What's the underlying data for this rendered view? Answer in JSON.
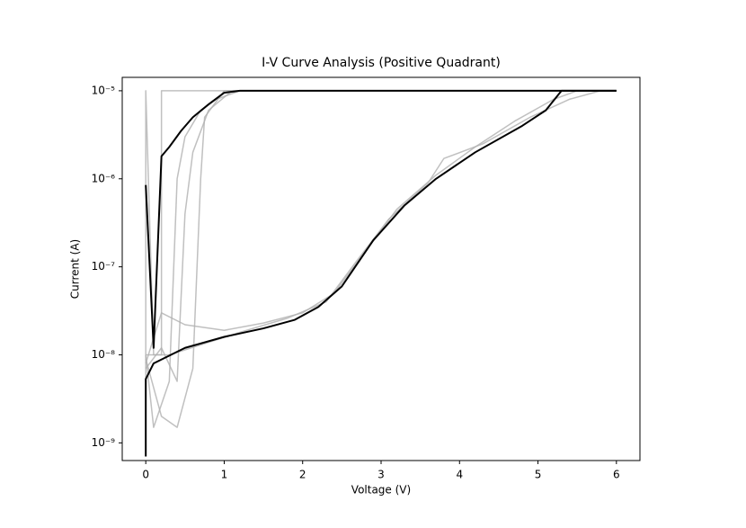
{
  "chart_data": {
    "type": "line",
    "title": "I-V Curve Analysis (Positive Quadrant)",
    "x_label": "Voltage (V)",
    "y_label": "Current (A)",
    "xlim": [
      -0.3,
      6.3
    ],
    "xticks": [
      0,
      1,
      2,
      3,
      4,
      5,
      6
    ],
    "yscale": "log",
    "ylim": [
      6.3e-10,
      1.42e-05
    ],
    "yticks": [
      {
        "value": 1e-09,
        "label": "10⁻⁹"
      },
      {
        "value": 1e-08,
        "label": "10⁻⁸"
      },
      {
        "value": 1e-07,
        "label": "10⁻⁷"
      },
      {
        "value": 1e-06,
        "label": "10⁻⁶"
      },
      {
        "value": 1e-05,
        "label": "10⁻⁵"
      }
    ],
    "grid": false,
    "series": [
      {
        "color": "#b0b0b0",
        "x": [
          0,
          0,
          0.1,
          0.2,
          0.2,
          6
        ],
        "values": [
          1e-09,
          1e-05,
          1e-08,
          1e-08,
          1e-05,
          1e-05
        ]
      },
      {
        "color": "#b0b0b0",
        "x": [
          0,
          0.1,
          0.3,
          0.4,
          0.5,
          0.7,
          0.9,
          1.2,
          6
        ],
        "values": [
          1e-08,
          1.5e-09,
          5e-09,
          1e-06,
          3e-06,
          6e-06,
          8e-06,
          1e-05,
          1e-05
        ]
      },
      {
        "color": "#b0b0b0",
        "x": [
          0,
          0.2,
          0.4,
          0.6,
          0.7,
          0.75,
          1,
          6
        ],
        "values": [
          9e-09,
          2e-09,
          1.5e-09,
          7e-09,
          1e-06,
          5e-06,
          1e-05,
          1e-05
        ]
      },
      {
        "color": "#b0b0b0",
        "x": [
          0,
          0.2,
          0.4,
          0.5,
          0.6,
          0.8,
          1.1,
          6
        ],
        "values": [
          7e-09,
          1.2e-08,
          5e-09,
          4e-07,
          2e-06,
          6e-06,
          1e-05,
          1e-05
        ]
      },
      {
        "color": "#b0b0b0",
        "x": [
          0,
          0.2,
          0.5,
          1,
          1.5,
          2,
          2.4,
          2.8,
          3.2,
          3.7,
          4.2,
          4.7,
          5.2,
          5.5,
          6
        ],
        "values": [
          8e-09,
          3e-08,
          2.2e-08,
          1.9e-08,
          2.3e-08,
          3e-08,
          5e-08,
          1.5e-07,
          4.5e-07,
          1.1e-06,
          2.3e-06,
          4.5e-06,
          8e-06,
          1e-05,
          1e-05
        ]
      },
      {
        "color": "#b0b0b0",
        "x": [
          0,
          0.3,
          0.7,
          1.2,
          1.8,
          2.3,
          2.7,
          3.1,
          3.6,
          3.8,
          4.3,
          4.9,
          5.4,
          5.8,
          6
        ],
        "values": [
          1e-08,
          1e-08,
          1.3e-08,
          1.8e-08,
          2.6e-08,
          4e-08,
          1.2e-07,
          3.5e-07,
          9e-07,
          1.7e-06,
          2.5e-06,
          5e-06,
          8e-06,
          1e-05,
          1e-05
        ]
      },
      {
        "color": "#000000",
        "x": [
          0,
          0,
          0.1,
          0.5,
          1,
          1.5,
          1.9,
          2.2,
          2.5,
          2.9,
          3.3,
          3.7,
          4.2,
          4.8,
          5.1,
          5.3,
          6
        ],
        "values": [
          7e-10,
          5.3e-09,
          8e-09,
          1.2e-08,
          1.6e-08,
          2e-08,
          2.5e-08,
          3.5e-08,
          6e-08,
          2e-07,
          5e-07,
          1e-06,
          2e-06,
          4e-06,
          6e-06,
          1e-05,
          1e-05
        ]
      },
      {
        "color": "#000000",
        "x": [
          0,
          0.1,
          0.2,
          0.3,
          0.45,
          0.6,
          0.8,
          1.0,
          1.2,
          6
        ],
        "values": [
          8.5e-07,
          1.2e-08,
          1.8e-06,
          2.3e-06,
          3.5e-06,
          5e-06,
          7e-06,
          9.5e-06,
          1e-05,
          1e-05
        ]
      }
    ]
  }
}
